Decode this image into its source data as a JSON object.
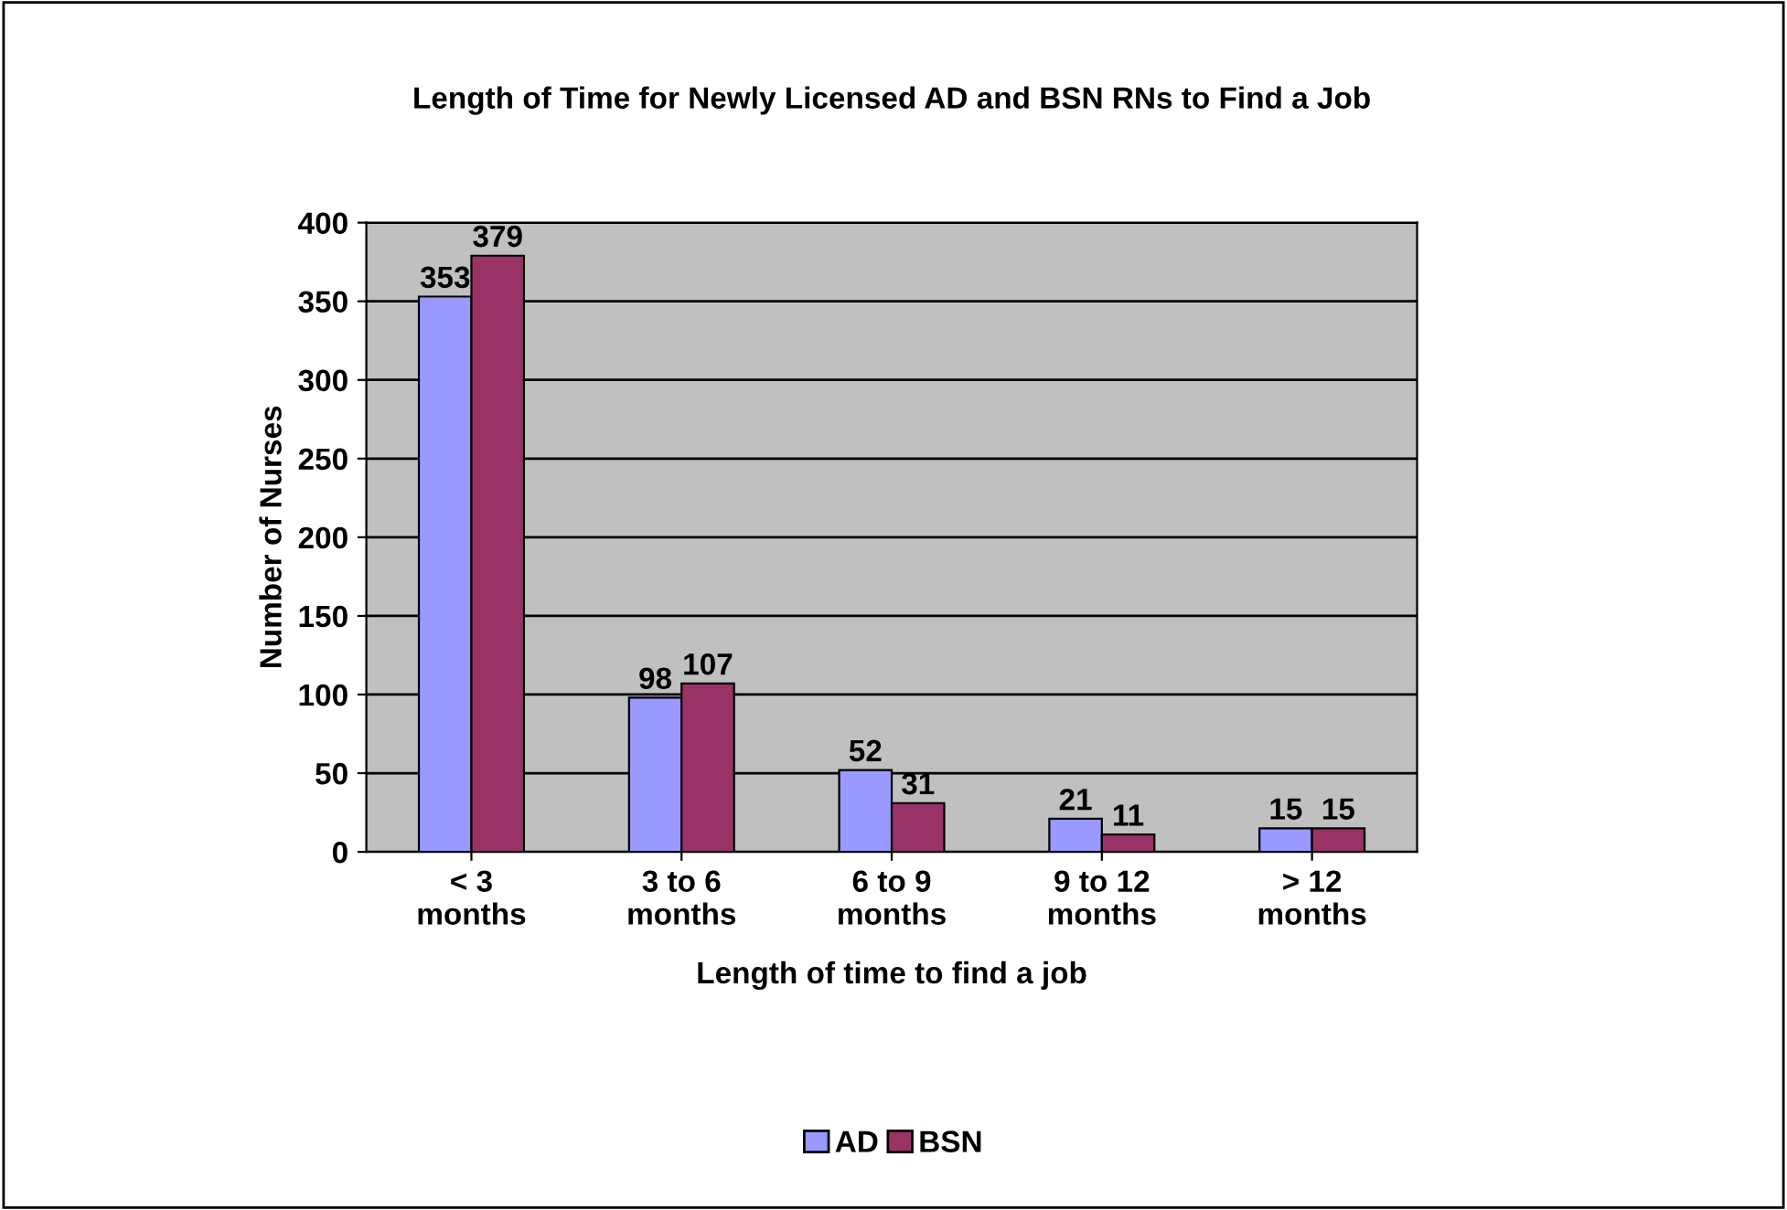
{
  "chart_data": {
    "type": "bar",
    "title": "Length of Time for Newly Licensed AD and BSN RNs to Find a Job",
    "xlabel": "Length of time to find a job",
    "ylabel": "Number of Nurses",
    "categories": [
      "< 3 months",
      "3 to 6 months",
      "6 to 9 months",
      "9 to 12 months",
      "> 12 months"
    ],
    "series": [
      {
        "name": "AD",
        "color": "#9999ff",
        "values": [
          353,
          98,
          52,
          21,
          15
        ]
      },
      {
        "name": "BSN",
        "color": "#993366",
        "values": [
          379,
          107,
          31,
          11,
          15
        ]
      }
    ],
    "ylim": [
      0,
      400
    ],
    "yticks": [
      0,
      50,
      100,
      150,
      200,
      250,
      300,
      350,
      400
    ],
    "grid": "y",
    "legend": "bottom",
    "data_labels": true
  }
}
